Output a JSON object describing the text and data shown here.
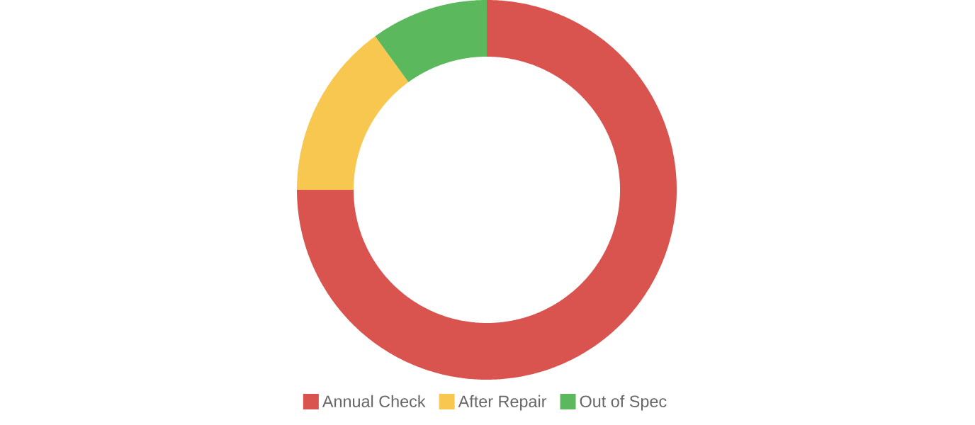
{
  "chart_data": {
    "type": "donut",
    "categories": [
      "Annual Check",
      "After Repair",
      "Out of Spec"
    ],
    "values": [
      75,
      15,
      10
    ],
    "colors": [
      "#d9534f",
      "#f8c74f",
      "#5cb85c"
    ],
    "legend": "bottom"
  }
}
